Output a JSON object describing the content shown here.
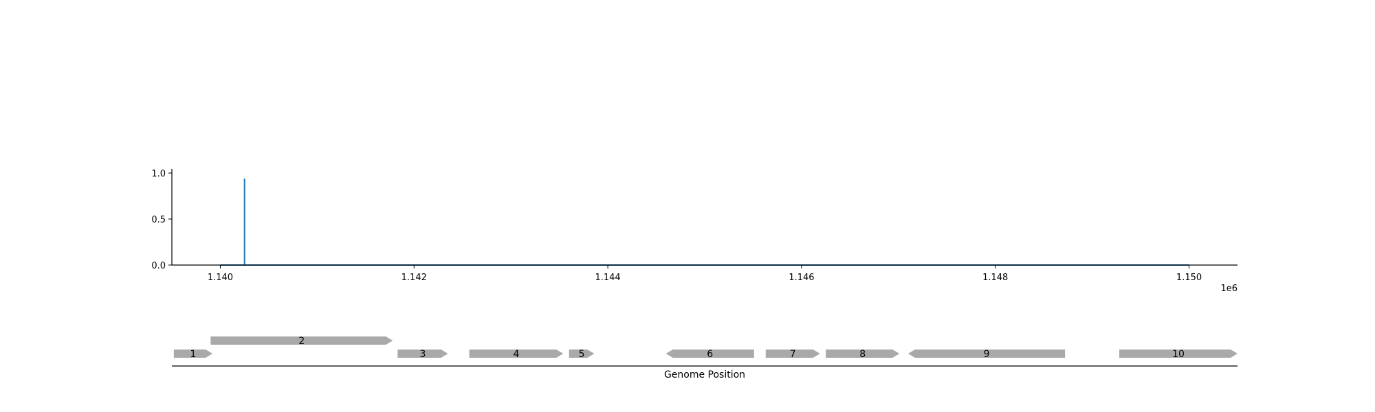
{
  "chart_data": [
    {
      "type": "line",
      "series": [
        {
          "color": "#1f77b4",
          "x": [
            1140000,
            1140250,
            1140250,
            1140250,
            1150000
          ],
          "y": [
            0,
            0,
            0.94,
            0,
            0
          ]
        }
      ],
      "xlim": [
        1139500,
        1150500
      ],
      "ylim": [
        0,
        1.0
      ],
      "x_ticks": [
        1140000,
        1142000,
        1144000,
        1146000,
        1148000,
        1150000
      ],
      "x_tick_labels": [
        "1.140",
        "1.142",
        "1.144",
        "1.146",
        "1.148",
        "1.150"
      ],
      "x_offset_label": "1e6",
      "y_ticks": [
        0.0,
        0.5,
        1.0
      ],
      "y_tick_labels": [
        "0.0",
        "0.5",
        "1.0"
      ],
      "grid": false
    },
    {
      "type": "gene_map",
      "xlabel": "Genome Position",
      "gene_color": "#a9a9a9",
      "genes": [
        {
          "label": "1",
          "start": 1139520,
          "end": 1139920,
          "strand": "+",
          "row": 0
        },
        {
          "label": "2",
          "start": 1139900,
          "end": 1141780,
          "strand": "+",
          "row": 1
        },
        {
          "label": "3",
          "start": 1141830,
          "end": 1142350,
          "strand": "+",
          "row": 0
        },
        {
          "label": "4",
          "start": 1142570,
          "end": 1143540,
          "strand": "+",
          "row": 0
        },
        {
          "label": "5",
          "start": 1143600,
          "end": 1143860,
          "strand": "+",
          "row": 0
        },
        {
          "label": "6",
          "start": 1144600,
          "end": 1145510,
          "strand": "-",
          "row": 0
        },
        {
          "label": "7",
          "start": 1145630,
          "end": 1146190,
          "strand": "+",
          "row": 0
        },
        {
          "label": "8",
          "start": 1146250,
          "end": 1147010,
          "strand": "+",
          "row": 0
        },
        {
          "label": "9",
          "start": 1147100,
          "end": 1148720,
          "strand": "-",
          "row": 0
        },
        {
          "label": "10",
          "start": 1149280,
          "end": 1150500,
          "strand": "+",
          "row": 0
        }
      ]
    }
  ]
}
